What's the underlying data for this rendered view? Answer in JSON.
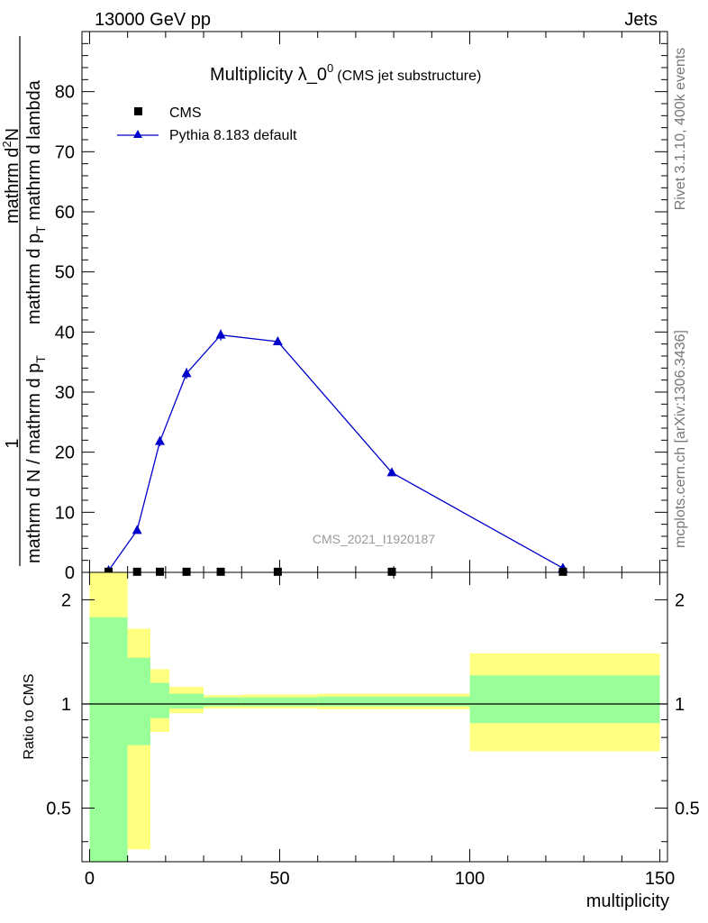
{
  "header": {
    "left": "13000 GeV pp",
    "right": "Jets"
  },
  "side_labels": {
    "rivet": "Rivet 3.1.10,  400k events",
    "mcplots": "mcplots.cern.ch [arXiv:1306.3436]"
  },
  "watermark": "CMS_2021_I1920187",
  "chart_data": [
    {
      "type": "line",
      "title_main": "Multiplicity λ_0",
      "title_sup": "0",
      "title_suffix": "(CMS jet substructure)",
      "ylabel_frac_num": "1",
      "ylabel_frac_den": "mathrm d N / mathrm d p",
      "ylabel_main": "mathrm d",
      "ylabel_main_sup": "2",
      "ylabel_main_rest": "N",
      "ylabel_main_den": "mathrm d p",
      "ylabel_main_den_rest": " mathrm d lambda",
      "ylabel_sub": "T",
      "ylim": [
        0,
        90
      ],
      "yticks": [
        0,
        10,
        20,
        30,
        40,
        50,
        60,
        70,
        80
      ],
      "xlim": [
        -2,
        152
      ],
      "legend": {
        "placement": "top-left",
        "entries": [
          "CMS",
          "Pythia 8.183 default"
        ]
      },
      "series": [
        {
          "name": "CMS",
          "marker": "square",
          "color": "#000000",
          "x": [
            5,
            12.5,
            18.5,
            25.5,
            34.5,
            49.5,
            79.5,
            124.5
          ],
          "y": [
            0.1,
            0.1,
            0.1,
            0.1,
            0.1,
            0.1,
            0.1,
            0.1
          ]
        },
        {
          "name": "Pythia 8.183 default",
          "marker": "triangle",
          "color": "#0000cc",
          "x": [
            5,
            12.5,
            18.5,
            25.5,
            34.5,
            49.5,
            79.5,
            124.5
          ],
          "y": [
            0.3,
            7.0,
            21.8,
            33.1,
            39.5,
            38.4,
            16.6,
            0.7
          ],
          "yerr": [
            0.1,
            0.4,
            0.8,
            0.9,
            0.9,
            0.6,
            0.3,
            0.1
          ]
        }
      ]
    },
    {
      "type": "area",
      "ylabel": "Ratio to CMS",
      "xlabel": "multiplicity",
      "ylim": [
        0.35,
        2.4
      ],
      "log_y": true,
      "yticks": [
        0.5,
        1,
        2
      ],
      "xticks": [
        0,
        50,
        100,
        150
      ],
      "xlim": [
        -2,
        152
      ],
      "reference_line": 1,
      "colors": {
        "outer": "#ffff80",
        "inner": "#99ff99",
        "line": "#000000"
      },
      "bands": [
        {
          "x0": 0,
          "x1": 10,
          "inner": [
            0.3,
            1.78
          ],
          "outer": [
            0.3,
            2.4
          ]
        },
        {
          "x0": 10,
          "x1": 16,
          "inner": [
            0.76,
            1.36
          ],
          "outer": [
            0.38,
            1.65
          ]
        },
        {
          "x0": 16,
          "x1": 21,
          "inner": [
            0.91,
            1.15
          ],
          "outer": [
            0.83,
            1.26
          ]
        },
        {
          "x0": 21,
          "x1": 30,
          "inner": [
            0.97,
            1.07
          ],
          "outer": [
            0.94,
            1.12
          ]
        },
        {
          "x0": 30,
          "x1": 40,
          "inner": [
            0.985,
            1.045
          ],
          "outer": [
            0.97,
            1.06
          ]
        },
        {
          "x0": 40,
          "x1": 60,
          "inner": [
            0.985,
            1.045
          ],
          "outer": [
            0.97,
            1.065
          ]
        },
        {
          "x0": 60,
          "x1": 100,
          "inner": [
            0.985,
            1.05
          ],
          "outer": [
            0.965,
            1.07
          ]
        },
        {
          "x0": 100,
          "x1": 150,
          "inner": [
            0.88,
            1.21
          ],
          "outer": [
            0.73,
            1.4
          ]
        }
      ]
    }
  ]
}
